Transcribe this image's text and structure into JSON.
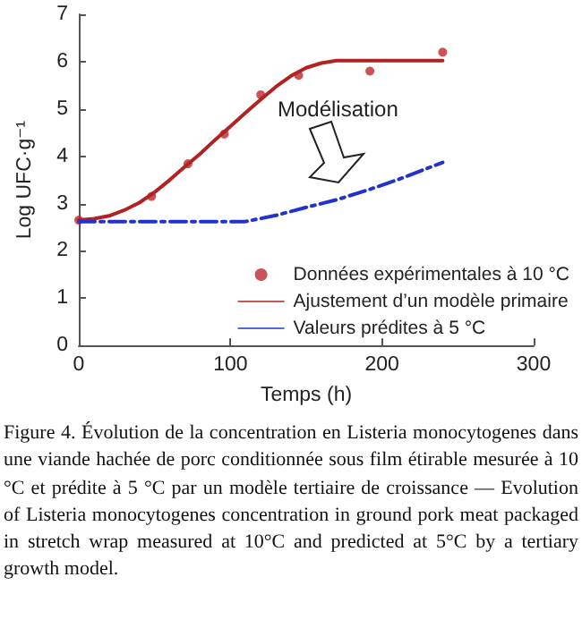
{
  "chart_data": {
    "type": "line",
    "xlabel": "Temps (h)",
    "ylabel": "Log UFC·g⁻¹",
    "xlim": [
      0,
      300
    ],
    "xticks": [
      0,
      100,
      200,
      300
    ],
    "ylim": [
      0,
      7
    ],
    "yticks": [
      0,
      1,
      2,
      3,
      4,
      5,
      6,
      7
    ],
    "grid": false,
    "legend": "bottom right",
    "series": [
      {
        "name": "Données expérimentales à 10 °C",
        "type": "scatter",
        "marker": "circle",
        "color": "#c0272d",
        "x": [
          0,
          48,
          72,
          96,
          120,
          145,
          192,
          240
        ],
        "values": [
          2.65,
          3.15,
          3.84,
          4.47,
          5.3,
          5.71,
          5.8,
          6.2
        ]
      },
      {
        "name": "Ajustement d’un modèle primaire",
        "marker": "none",
        "line_style": "solid",
        "color": "#b22222",
        "x": [
          0,
          10,
          20,
          30,
          40,
          50,
          60,
          70,
          80,
          90,
          100,
          110,
          120,
          130,
          140,
          150,
          160,
          170,
          240
        ],
        "values": [
          2.65,
          2.68,
          2.74,
          2.86,
          3.02,
          3.24,
          3.5,
          3.78,
          4.05,
          4.35,
          4.63,
          4.92,
          5.2,
          5.47,
          5.7,
          5.87,
          5.97,
          6.02,
          6.02
        ]
      },
      {
        "name": "Valeurs prédites à 5 °C",
        "marker": "none",
        "line_style": "dashed",
        "color": "#2233cc",
        "x": [
          0,
          110,
          130,
          150,
          170,
          190,
          210,
          240
        ],
        "values": [
          2.62,
          2.62,
          2.75,
          2.92,
          3.08,
          3.28,
          3.5,
          3.87
        ]
      }
    ],
    "annotations": [
      "Modélisation",
      "Figure 4. Évolution de la concentration en Listeria monocytogenes dans une viande hachée de porc conditionnée sous film étirable mesurée à 10 °C et prédite à 5 °C par un modèle tertiaire de croissance — Evolution of Listeria monocytogenes concentration in ground pork meat packaged in stretch wrap measured at 10°C and predicted at 5°C by a tertiary growth model."
    ]
  }
}
